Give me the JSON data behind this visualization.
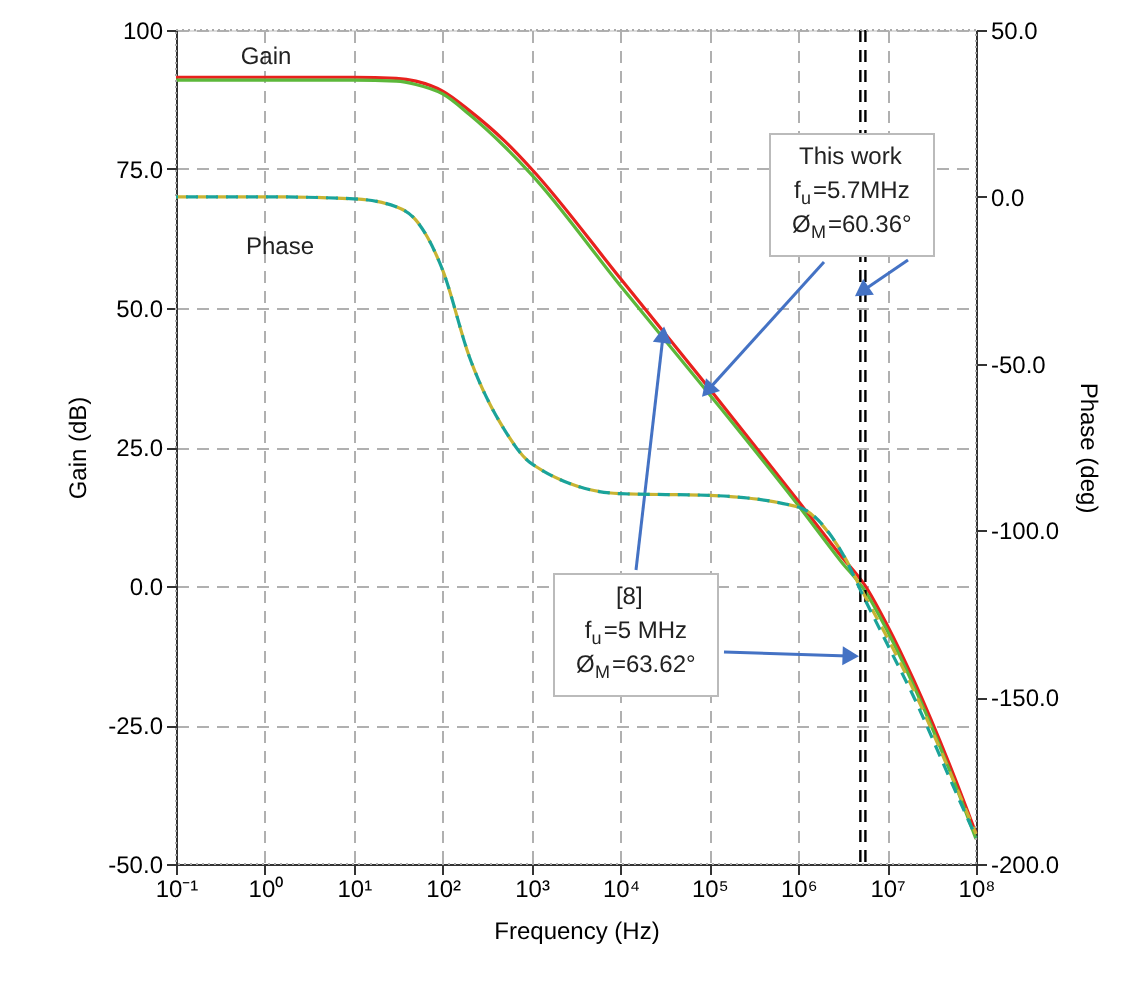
{
  "chart_data": {
    "type": "line",
    "xlabel": "Frequency (Hz)",
    "ylabel": "Gain (dB)",
    "y2label": "Phase (deg)",
    "x": [
      0.1,
      1,
      10,
      30,
      50,
      100,
      200,
      500,
      1000,
      10000,
      100000,
      1000000,
      3000000,
      5700000,
      10000000,
      20000000,
      50000000,
      100000000
    ],
    "series": [
      {
        "color": "#e8211d",
        "values": [
          91.5,
          91.5,
          91.5,
          91.3,
          90.8,
          89,
          85.5,
          80,
          75,
          55.3,
          35.5,
          15.3,
          5.5,
          0,
          -7,
          -17,
          -32,
          -44.5
        ]
      },
      {
        "color": "#5cb83a",
        "values": [
          91.0,
          91.0,
          91.0,
          90.8,
          90.2,
          88.5,
          84.8,
          79,
          74,
          54,
          34.5,
          14.5,
          4.5,
          -1,
          -8,
          -18,
          -33,
          -45.5
        ]
      },
      {
        "color": "#c8b432",
        "axis": "y2",
        "line_style": "dashed",
        "values": [
          0,
          0,
          -0.6,
          -3,
          -7,
          -22,
          -48,
          -70,
          -80,
          -89,
          -89.5,
          -93,
          -106,
          -120,
          -132,
          -148,
          -172,
          -191
        ]
      },
      {
        "color": "#1aa39a",
        "axis": "y2",
        "line_style": "dashed",
        "values": [
          0,
          0,
          -0.6,
          -3,
          -7,
          -22,
          -48,
          -70,
          -80,
          -89,
          -89.5,
          -93,
          -106,
          -121,
          -134,
          -150,
          -174,
          -192
        ]
      }
    ],
    "xlim": [
      0.1,
      100000000
    ],
    "xticks": [
      {
        "value": 0.1,
        "label": "10⁻¹"
      },
      {
        "value": 1,
        "label": "10⁰"
      },
      {
        "value": 10,
        "label": "10¹"
      },
      {
        "value": 100,
        "label": "10²"
      },
      {
        "value": 1000,
        "label": "10³"
      },
      {
        "value": 10000,
        "label": "10⁴"
      },
      {
        "value": 100000,
        "label": "10⁵"
      },
      {
        "value": 1000000,
        "label": "10⁶"
      },
      {
        "value": 10000000,
        "label": "10⁷"
      },
      {
        "value": 100000000,
        "label": "10⁸"
      }
    ],
    "ylim": [
      -50,
      100
    ],
    "yticks": [
      {
        "value": -50,
        "label": "-50.0"
      },
      {
        "value": -25,
        "label": "-25.0"
      },
      {
        "value": 0,
        "label": "0.0"
      },
      {
        "value": 25,
        "label": "25.0"
      },
      {
        "value": 50,
        "label": "50.0"
      },
      {
        "value": 75,
        "label": "75.0"
      },
      100
    ],
    "y2lim": [
      -200,
      50
    ],
    "y2ticks": [
      {
        "value": -200,
        "label": "-200.0"
      },
      {
        "value": -150,
        "label": "-150.0"
      },
      {
        "value": -100,
        "label": "-100.0"
      },
      {
        "value": -50,
        "label": "-50.0"
      },
      {
        "value": 0,
        "label": "0.0"
      },
      {
        "value": 50,
        "label": "50.0"
      }
    ],
    "log": "x",
    "grid": true,
    "marker": "none",
    "ref_lines": [
      {
        "axis": "x",
        "value": 5000000,
        "color": "#000000",
        "line_style": "dashed"
      },
      {
        "axis": "x",
        "value": 5700000,
        "color": "#000000",
        "line_style": "dashed"
      }
    ],
    "annotations": [
      "Gain",
      "Phase",
      {
        "text": "This work\nf$_{u}$=5.7MHz\nØ$_{M}$=60.36°",
        "x": 100000,
        "y": 35.5
      },
      {
        "text": "[8]\nf$_{u}$=5 MHz\nØ$_{M}$=63.62°",
        "x": 30000,
        "y": 44.7
      }
    ]
  }
}
